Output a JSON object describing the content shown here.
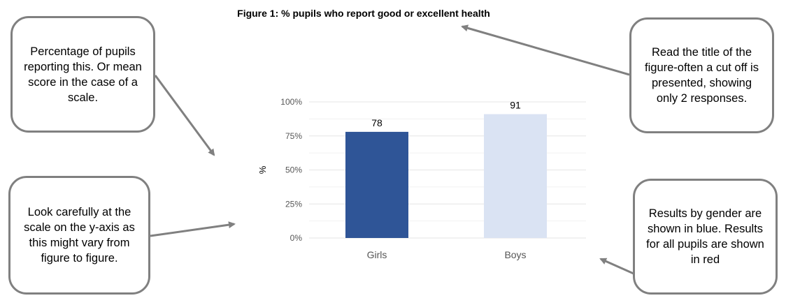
{
  "title": "Figure 1: % pupils who report good or excellent health",
  "callouts": {
    "percentage": "Percentage of pupils reporting this. Or mean score in the case of a scale.",
    "scale": "Look carefully at the scale on the y-axis as this might vary from figure to figure.",
    "title_note": "Read the title of the figure-often a cut off is presented, showing only 2 responses.",
    "gender": "Results by gender are shown in blue. Results for all pupils are shown in red"
  },
  "colors": {
    "girls": "#2f5597",
    "boys": "#dae3f3",
    "arrow": "#808080",
    "grid": "#e6e6e6"
  },
  "chart_data": {
    "type": "bar",
    "title": "Figure 1: % pupils who report good or excellent health",
    "categories": [
      "Girls",
      "Boys"
    ],
    "values": [
      78,
      91
    ],
    "data_labels": [
      "78",
      "91"
    ],
    "xlabel": "",
    "ylabel": "%",
    "ylim": [
      0,
      100
    ],
    "yticks": [
      0,
      25,
      50,
      75,
      100
    ],
    "ytick_labels": [
      "0%",
      "25%",
      "50%",
      "75%",
      "100%"
    ],
    "grid": true,
    "legend": "none"
  }
}
